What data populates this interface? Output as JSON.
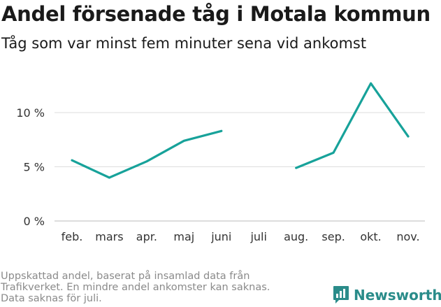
{
  "title": "Andel försenade tåg i Motala kommun",
  "subtitle": "Tåg som var minst fem minuter sena vid ankomst",
  "footer_lines": [
    "Uppskattad andel, baserat på insamlad data från",
    "Trafikverket. En mindre andel ankomster kan saknas.",
    "Data saknas för juli."
  ],
  "brand": "Newsworthy",
  "colors": {
    "line": "#17a29a",
    "grid": "#dddddd",
    "brand": "#2a8c8a"
  },
  "chart_data": {
    "type": "line",
    "title": "Andel försenade tåg i Motala kommun",
    "subtitle": "Tåg som var minst fem minuter sena vid ankomst",
    "categories": [
      "feb.",
      "mars",
      "apr.",
      "maj",
      "juni",
      "juli",
      "aug.",
      "sep.",
      "okt.",
      "nov."
    ],
    "series": [
      {
        "values": [
          5.6,
          4.0,
          5.5,
          7.4,
          8.3,
          null,
          4.9,
          6.3,
          12.7,
          7.8
        ]
      }
    ],
    "y_ticks": [
      0,
      5,
      10
    ],
    "y_tick_labels": [
      "0 %",
      "5 %",
      "10 %"
    ],
    "ylim": [
      0,
      13
    ],
    "grid": "horizontal",
    "xlabel": "",
    "ylabel": ""
  }
}
